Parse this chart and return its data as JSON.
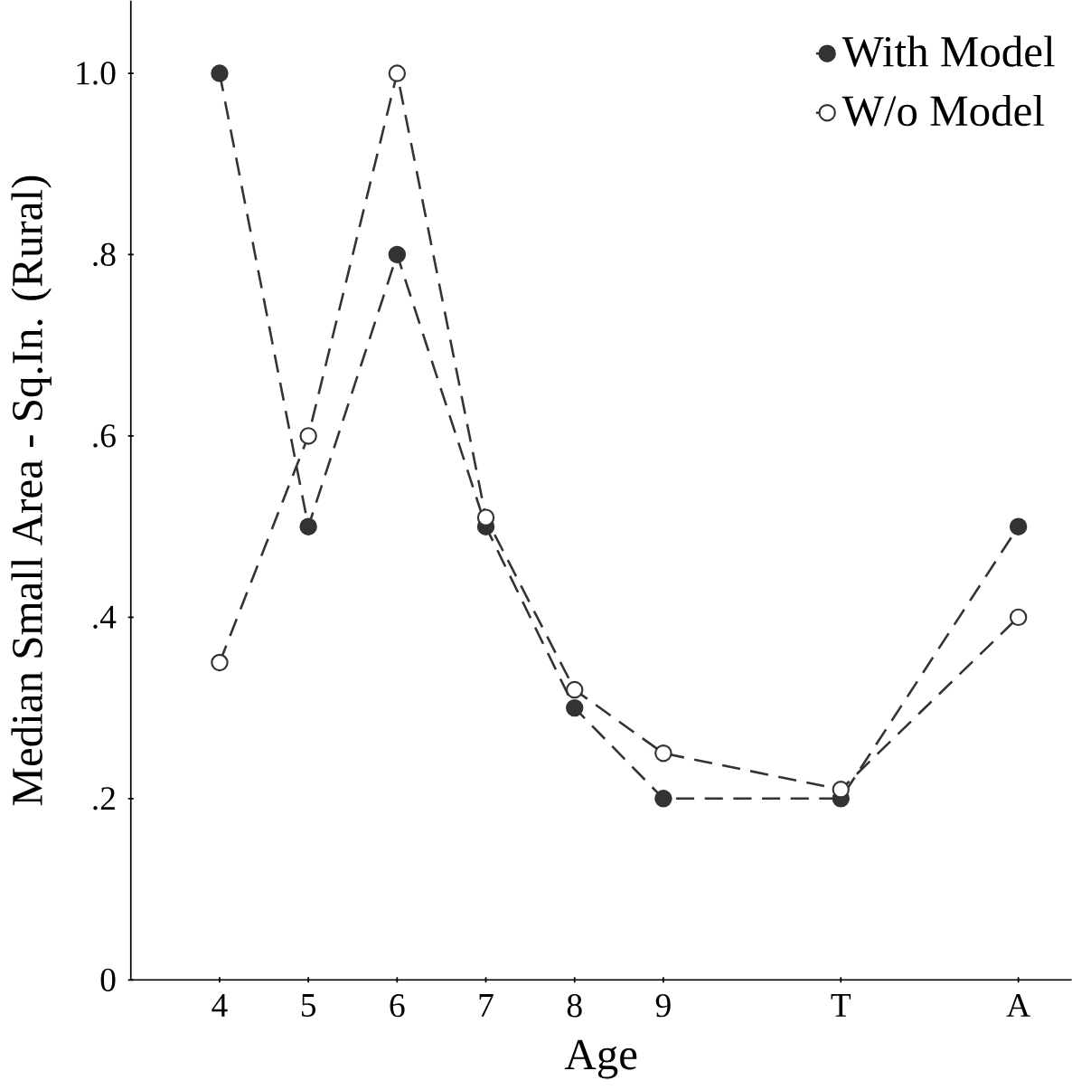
{
  "chart_data": {
    "type": "line",
    "xlabel": "Age",
    "ylabel": "Median Small Area - Sq.In. (Rural)",
    "x": [
      4,
      5,
      6,
      7,
      8,
      9,
      11,
      13
    ],
    "xlim": [
      3,
      13.6
    ],
    "ylim": [
      0,
      1.08
    ],
    "xticks": [
      4,
      5,
      6,
      7,
      8,
      9,
      {
        "value": 11,
        "label": "T"
      },
      {
        "value": 13,
        "label": "A"
      }
    ],
    "yticks": [
      {
        "value": 0,
        "label": "0"
      },
      {
        "value": 0.2,
        "label": ".2"
      },
      {
        "value": 0.4,
        "label": ".4"
      },
      {
        "value": 0.6,
        "label": ".6"
      },
      {
        "value": 0.8,
        "label": ".8"
      },
      {
        "value": 1.0,
        "label": "1.0"
      }
    ],
    "series": [
      {
        "name": "With Model",
        "color": "#333333",
        "values": [
          1.0,
          0.5,
          0.8,
          0.5,
          0.3,
          0.2,
          0.2,
          0.5
        ]
      },
      {
        "name": "W/o Model",
        "color": "#333333",
        "values": [
          0.35,
          0.6,
          1.0,
          0.51,
          0.32,
          0.25,
          0.21,
          0.4
        ]
      }
    ],
    "marker": "circle",
    "line_style": "dashed",
    "grid": false,
    "legend": "top right"
  }
}
